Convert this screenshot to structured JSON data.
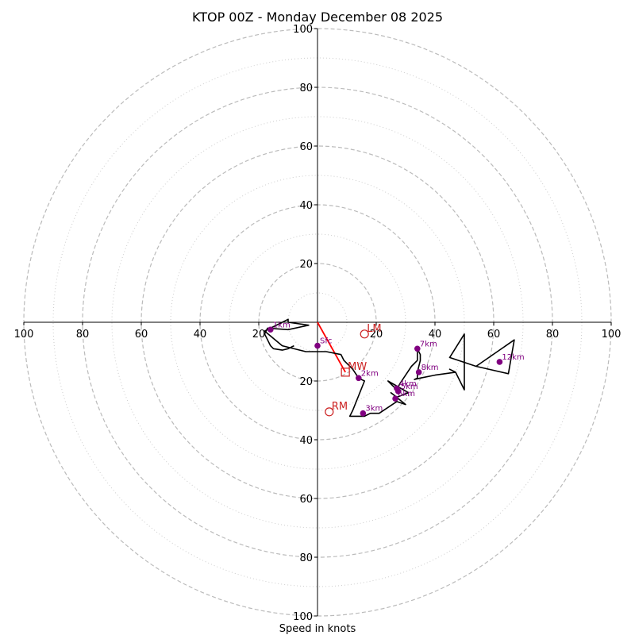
{
  "chart_data": {
    "type": "hodograph",
    "title": "KTOP 00Z - Monday December 08 2025",
    "xlabel": "Speed in knots",
    "ring_speeds": [
      20,
      40,
      60,
      80,
      100
    ],
    "minor_ring_speeds": [
      10,
      30,
      50,
      70,
      90
    ],
    "max_speed": 100,
    "x_tick_labels": [
      "100",
      "80",
      "60",
      "40",
      "20",
      "20",
      "40",
      "60",
      "80",
      "100"
    ],
    "x_tick_values": [
      -100,
      -80,
      -60,
      -40,
      -20,
      20,
      40,
      60,
      80,
      100
    ],
    "y_tick_labels_top": [
      "20",
      "40",
      "60",
      "80",
      "100"
    ],
    "y_tick_labels_bottom": [
      "20",
      "40",
      "60",
      "80",
      "100"
    ],
    "y_tick_values_top": [
      20,
      40,
      60,
      80,
      100
    ],
    "y_tick_values_bottom": [
      -20,
      -40,
      -60,
      -80,
      -100
    ],
    "wind_trace": [
      [
        -8,
        -8
      ],
      [
        -10,
        -9
      ],
      [
        -12,
        -9.5
      ],
      [
        -15,
        -9
      ],
      [
        -16,
        -8
      ],
      [
        -17,
        -6
      ],
      [
        -18,
        -4
      ],
      [
        -17,
        -2
      ],
      [
        -10,
        -2.5
      ],
      [
        -3,
        -1
      ],
      [
        -10,
        0
      ],
      [
        -10,
        1
      ],
      [
        -18,
        -3
      ],
      [
        -12,
        -8
      ],
      [
        -4,
        -10
      ],
      [
        3,
        -10
      ],
      [
        8,
        -11
      ],
      [
        9,
        -13
      ],
      [
        12,
        -16
      ],
      [
        14,
        -19
      ],
      [
        16,
        -20
      ],
      [
        12,
        -30
      ],
      [
        11,
        -32
      ],
      [
        13,
        -32
      ],
      [
        16,
        -32
      ],
      [
        18,
        -31
      ],
      [
        21,
        -31
      ],
      [
        24,
        -29
      ],
      [
        27,
        -27
      ],
      [
        30,
        -28
      ],
      [
        25,
        -24
      ],
      [
        27,
        -25.5
      ],
      [
        31,
        -24
      ],
      [
        24,
        -20
      ],
      [
        27,
        -23
      ],
      [
        28,
        -21
      ],
      [
        30,
        -18
      ],
      [
        32,
        -15
      ],
      [
        34,
        -13
      ],
      [
        34,
        -9
      ],
      [
        35,
        -11
      ],
      [
        35,
        -13
      ],
      [
        34,
        -17
      ],
      [
        34,
        -19
      ],
      [
        33,
        -19.5
      ],
      [
        35,
        -19
      ],
      [
        40,
        -18
      ],
      [
        47,
        -17
      ],
      [
        45,
        -16
      ],
      [
        47,
        -17
      ],
      [
        50,
        -23
      ],
      [
        50,
        -4
      ],
      [
        45,
        -12
      ],
      [
        54,
        -15
      ],
      [
        67,
        -6
      ],
      [
        65,
        -17.5
      ],
      [
        54,
        -15
      ]
    ],
    "height_markers": [
      {
        "label": "Sfc",
        "u": 0,
        "v": -8
      },
      {
        "label": "1km",
        "u": -16,
        "v": -2.5
      },
      {
        "label": "2km",
        "u": 14,
        "v": -19
      },
      {
        "label": "3km",
        "u": 15.5,
        "v": -31
      },
      {
        "label": "4km",
        "u": 27,
        "v": -22.5
      },
      {
        "label": "5km",
        "u": 27.5,
        "v": -23.5
      },
      {
        "label": "6km",
        "u": 26.5,
        "v": -26
      },
      {
        "label": "7km",
        "u": 34,
        "v": -9
      },
      {
        "label": "8km",
        "u": 34.5,
        "v": -17
      },
      {
        "label": "12km",
        "u": 62,
        "v": -13.5
      }
    ],
    "mean_wind_vector": [
      [
        0,
        0
      ],
      [
        9.5,
        -17
      ]
    ],
    "storm_motions": [
      {
        "label": "LM",
        "u": 16,
        "v": -4,
        "marker": "circle"
      },
      {
        "label": "MW",
        "u": 9.5,
        "v": -17,
        "marker": "square"
      },
      {
        "label": "RM",
        "u": 4,
        "v": -30.5,
        "marker": "circle"
      }
    ],
    "colors": {
      "trace": "#000000",
      "markers": "#800080",
      "storm_motion": "#cc2222",
      "mean_wind": "#ff0000",
      "rings": "#bbbbbb",
      "minor_rings": "#cccccc"
    }
  }
}
